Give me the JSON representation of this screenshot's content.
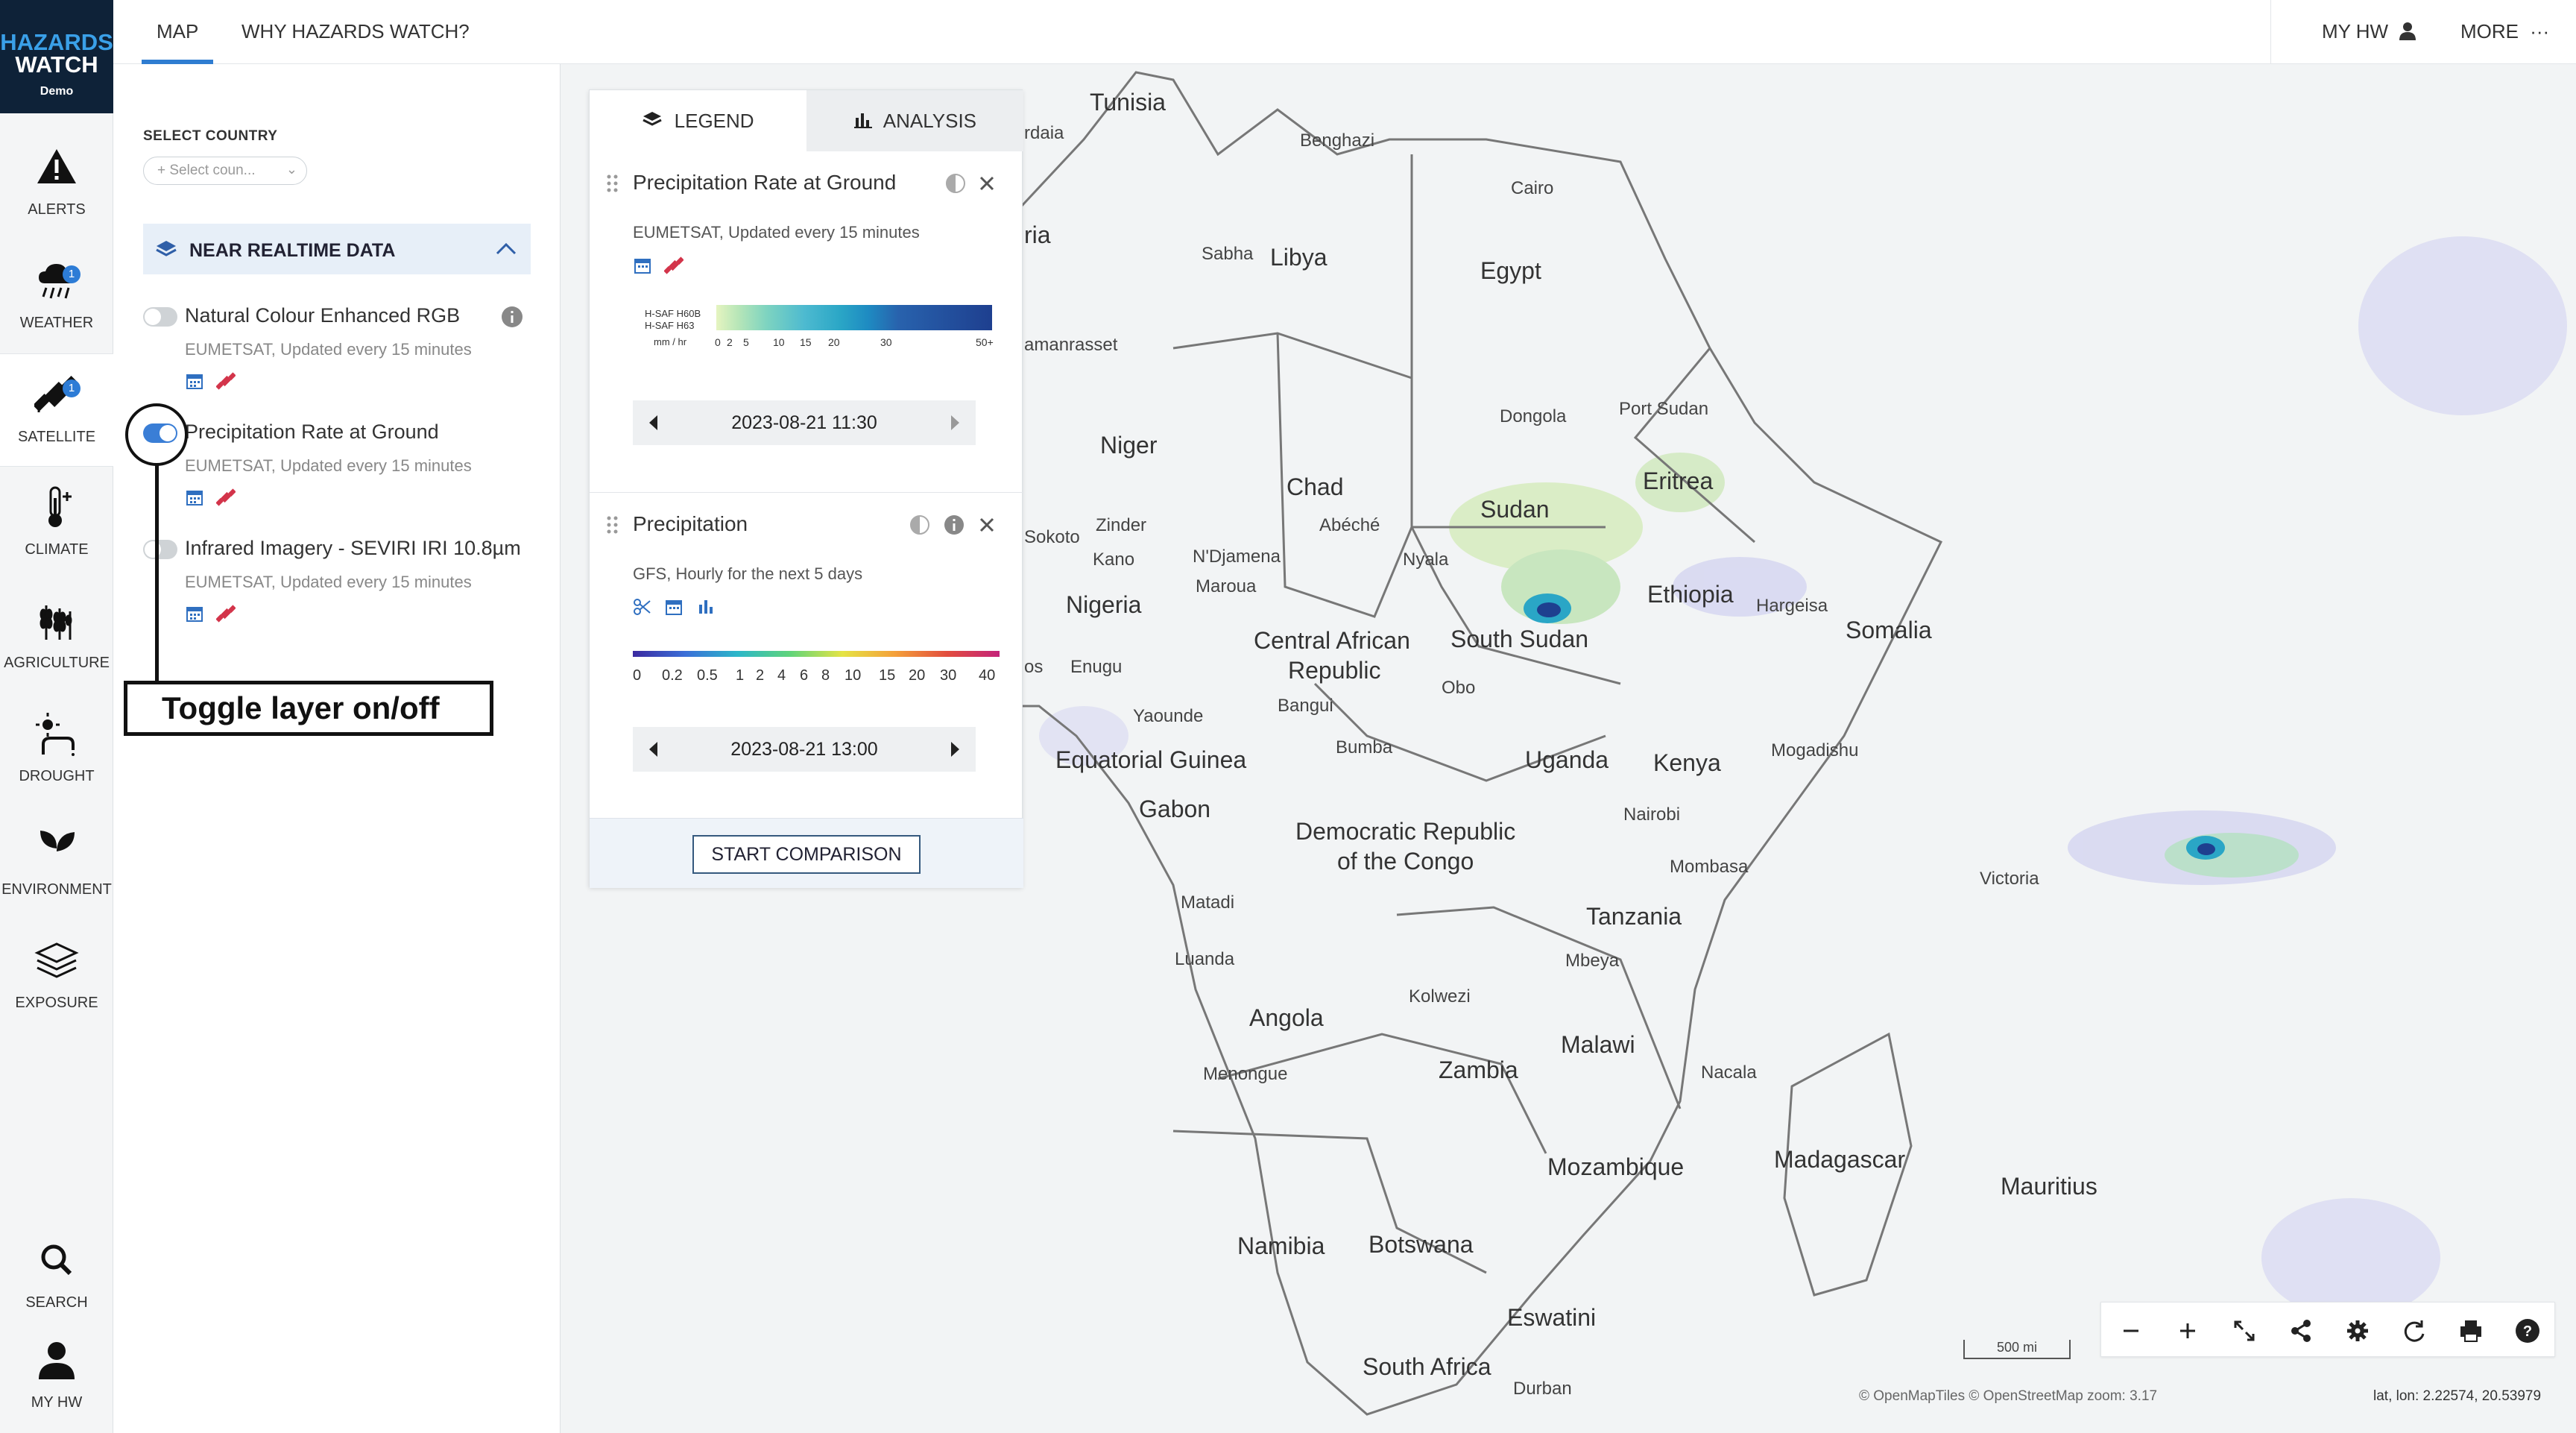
{
  "brand": {
    "line1": "HAZARDS",
    "line2": "WATCH",
    "line3": "Demo"
  },
  "rail": {
    "alerts": "ALERTS",
    "weather": "WEATHER",
    "weather_badge": "1",
    "satellite": "SATELLITE",
    "satellite_badge": "1",
    "climate": "CLIMATE",
    "agriculture": "AGRICULTURE",
    "drought": "DROUGHT",
    "environment": "ENVIRONMENT",
    "exposure": "EXPOSURE",
    "search": "SEARCH",
    "myhw": "MY HW"
  },
  "topnav": {
    "map": "MAP",
    "why": "WHY HAZARDS WATCH?",
    "myhw": "MY HW",
    "more": "MORE"
  },
  "panel": {
    "select_label": "SELECT COUNTRY",
    "select_placeholder": "+ Select coun...",
    "section_title": "NEAR REALTIME DATA",
    "layers": [
      {
        "name": "Natural Colour Enhanced RGB",
        "source": "EUMETSAT, Updated every 15 minutes",
        "on": false
      },
      {
        "name": "Precipitation Rate at Ground",
        "source": "EUMETSAT, Updated every 15 minutes",
        "on": true
      },
      {
        "name": "Infrared Imagery - SEVIRI IRI 10.8µm",
        "source": "EUMETSAT, Updated every 15 minutes",
        "on": false
      }
    ],
    "callout": "Toggle layer on/off"
  },
  "legend": {
    "tab_legend": "LEGEND",
    "tab_analysis": "ANALYSIS",
    "card1": {
      "name": "Precipitation Rate at Ground",
      "source": "EUMETSAT, Updated every 15 minutes",
      "scale_label1": "H-SAF H60B",
      "scale_label2": "H-SAF H63",
      "unit": "mm / hr",
      "ticks": [
        "0",
        "2",
        "5",
        "10",
        "15",
        "20",
        "30",
        "50+"
      ],
      "date": "2023-08-21 11:30"
    },
    "card2": {
      "name": "Precipitation",
      "source": "GFS, Hourly for the next 5 days",
      "ticks": [
        "0",
        "0.2",
        "0.5",
        "1",
        "2",
        "4",
        "6",
        "8",
        "10",
        "15",
        "20",
        "30",
        "40"
      ],
      "date": "2023-08-21 13:00"
    },
    "compare": "START COMPARISON"
  },
  "map": {
    "labels": {
      "tunisia": "Tunisia",
      "benghazi": "Benghazi",
      "cairo": "Cairo",
      "sabha": "Sabha",
      "libya": "Libya",
      "egypt": "Egypt",
      "daia": "rdaia",
      "ria": "ria",
      "tamanrasset": "amanrasset",
      "niger": "Niger",
      "chad": "Chad",
      "sudan": "Sudan",
      "dongola": "Dongola",
      "portsudan": "Port Sudan",
      "eritrea": "Eritrea",
      "zinder": "Zinder",
      "sokoto": "Sokoto",
      "kano": "Kano",
      "abeche": "Abéché",
      "ndjamena": "N'Djamena",
      "maroua": "Maroua",
      "nyala": "Nyala",
      "nigeria": "Nigeria",
      "ethiopia": "Ethiopia",
      "hargeisa": "Hargeisa",
      "somalia": "Somalia",
      "car1": "Central African",
      "car2": "Republic",
      "southsudan": "South Sudan",
      "enugu": "Enugu",
      "os": "os",
      "obo": "Obo",
      "bangui": "Bangui",
      "yaounde": "Yaounde",
      "eqguinea": "Equatorial Guinea",
      "bumba": "Bumba",
      "uganda": "Uganda",
      "kenya": "Kenya",
      "mogadishu": "Mogadishu",
      "gabon": "Gabon",
      "nairobi": "Nairobi",
      "drc1": "Democratic Republic",
      "drc2": "of the Congo",
      "mombasa": "Mombasa",
      "victoria": "Victoria",
      "matadi": "Matadi",
      "tanzania": "Tanzania",
      "luanda": "Luanda",
      "mbeya": "Mbeya",
      "angola": "Angola",
      "kolwezi": "Kolwezi",
      "malawi": "Malawi",
      "menongue": "Menongue",
      "zambia": "Zambia",
      "nacala": "Nacala",
      "madagascar": "Madagascar",
      "mozambique": "Mozambique",
      "mauritius": "Mauritius",
      "namibia": "Namibia",
      "botswana": "Botswana",
      "eswatini": "Eswatini",
      "southafrica": "South Africa",
      "durban": "Durban"
    },
    "scale": "500 mi",
    "attribution": "© OpenMapTiles  © OpenStreetMap  zoom: 3.17",
    "latlon": "lat, lon: 2.22574, 20.53979"
  },
  "colors": {
    "accent": "#2f7dd1",
    "brand_bg": "#0e2238",
    "rain_high": "#1e3f8f",
    "rain_mid": "#2aa6c6",
    "rain_low": "#c7e9a0"
  }
}
